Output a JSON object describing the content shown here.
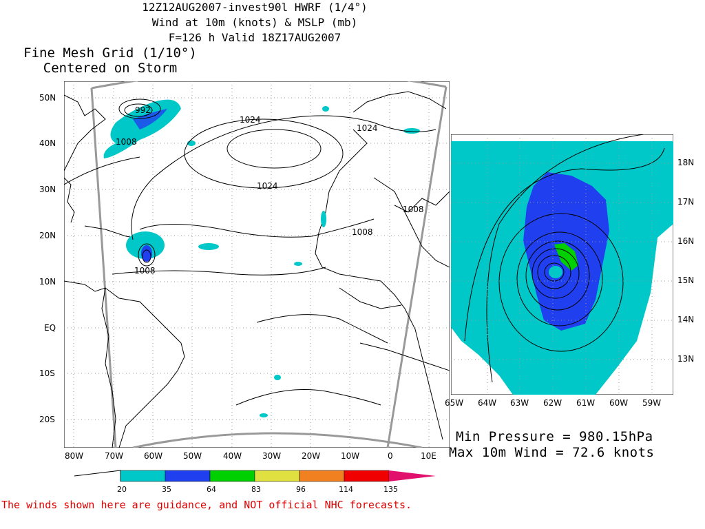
{
  "title": {
    "line1": "12Z12AUG2007-invest90l HWRF (1/4°)",
    "line2": "Wind at 10m (knots) & MSLP (mb)",
    "line3": "F=126 h Valid 18Z17AUG2007"
  },
  "fine_mesh": {
    "line1": "Fine Mesh Grid (1/10°)",
    "line2": "Centered on Storm"
  },
  "stats": {
    "min_pressure": "Min Pressure = 980.15hPa",
    "max_wind": "Max 10m Wind = 72.6 knots"
  },
  "disclaimer": "The winds shown here are guidance, and NOT official NHC forecasts.",
  "main_map": {
    "lat_labels": [
      "50N",
      "40N",
      "30N",
      "20N",
      "10N",
      "EQ",
      "10S",
      "20S"
    ],
    "lon_labels": [
      "80W",
      "70W",
      "60W",
      "50W",
      "40W",
      "30W",
      "20W",
      "10W",
      "0",
      "10E"
    ],
    "contour_labels": [
      "992",
      "1008",
      "1024",
      "1024",
      "1024",
      "1008",
      "1008",
      "1008"
    ]
  },
  "fine_map": {
    "lat_labels": [
      "18N",
      "17N",
      "16N",
      "15N",
      "14N",
      "13N"
    ],
    "lon_labels": [
      "65W",
      "64W",
      "63W",
      "62W",
      "61W",
      "60W",
      "59W"
    ]
  },
  "colorbar": {
    "labels": [
      "20",
      "35",
      "64",
      "83",
      "96",
      "114",
      "135"
    ],
    "colors": [
      "#00c8c8",
      "#2040f0",
      "#00d000",
      "#e0e040",
      "#f08020",
      "#f00000",
      "#e0106c"
    ]
  }
}
